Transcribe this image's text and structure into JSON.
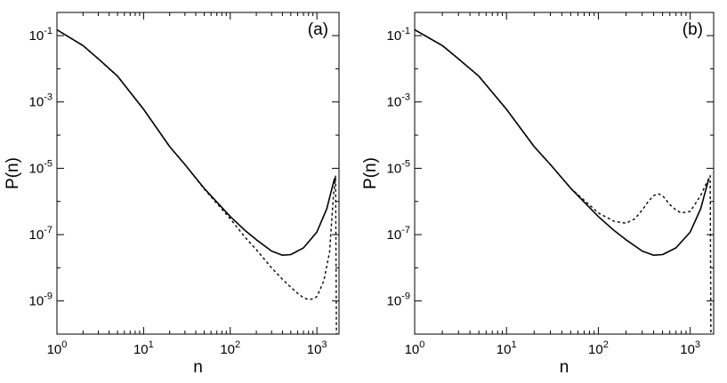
{
  "chart_data": [
    {
      "type": "line",
      "panel_label": "(a)",
      "xlabel": "n",
      "ylabel": "P(n)",
      "xscale": "log",
      "yscale": "log",
      "xlim": [
        1,
        1800
      ],
      "ylim": [
        1e-10,
        0.5
      ],
      "x_ticks": [
        {
          "base": "10",
          "exp": "0"
        },
        {
          "base": "10",
          "exp": "1"
        },
        {
          "base": "10",
          "exp": "2"
        },
        {
          "base": "10",
          "exp": "3"
        }
      ],
      "y_ticks": [
        {
          "base": "10",
          "exp": "-9"
        },
        {
          "base": "10",
          "exp": "-7"
        },
        {
          "base": "10",
          "exp": "-5"
        },
        {
          "base": "10",
          "exp": "-3"
        },
        {
          "base": "10",
          "exp": "-1"
        }
      ],
      "grid": false,
      "series": [
        {
          "style": "solid",
          "x": [
            1,
            2,
            3,
            5,
            10,
            20,
            30,
            50,
            100,
            150,
            200,
            300,
            400,
            500,
            700,
            1000,
            1300,
            1600
          ],
          "y": [
            0.15,
            0.05,
            0.02,
            0.006,
            0.0006,
            4.5e-05,
            1.3e-05,
            2.5e-06,
            3.5e-07,
            1.3e-07,
            7e-08,
            3.2e-08,
            2.4e-08,
            2.5e-08,
            4e-08,
            1.2e-07,
            6e-07,
            5e-06
          ]
        },
        {
          "style": "dashed",
          "x": [
            1,
            2,
            3,
            5,
            10,
            20,
            30,
            50,
            100,
            150,
            200,
            300,
            400,
            500,
            600,
            700,
            800,
            900,
            1000,
            1200,
            1400,
            1550,
            1640,
            1680
          ],
          "y": [
            0.15,
            0.05,
            0.02,
            0.006,
            0.0006,
            4.5e-05,
            1.3e-05,
            2.4e-06,
            3e-07,
            8e-08,
            3.5e-08,
            1e-08,
            4.5e-09,
            2.6e-09,
            1.7e-09,
            1.25e-09,
            1.1e-09,
            1.15e-09,
            1.35e-09,
            4e-09,
            3e-08,
            1.5e-06,
            6e-06,
            1e-10
          ]
        }
      ]
    },
    {
      "type": "line",
      "panel_label": "(b)",
      "xlabel": "n",
      "ylabel": "P(n)",
      "xscale": "log",
      "yscale": "log",
      "xlim": [
        1,
        1800
      ],
      "ylim": [
        1e-10,
        0.5
      ],
      "x_ticks": [
        {
          "base": "10",
          "exp": "0"
        },
        {
          "base": "10",
          "exp": "1"
        },
        {
          "base": "10",
          "exp": "2"
        },
        {
          "base": "10",
          "exp": "3"
        }
      ],
      "y_ticks": [
        {
          "base": "10",
          "exp": "-9"
        },
        {
          "base": "10",
          "exp": "-7"
        },
        {
          "base": "10",
          "exp": "-5"
        },
        {
          "base": "10",
          "exp": "-3"
        },
        {
          "base": "10",
          "exp": "-1"
        }
      ],
      "grid": false,
      "series": [
        {
          "style": "solid",
          "x": [
            1,
            2,
            3,
            5,
            10,
            20,
            30,
            50,
            100,
            150,
            200,
            300,
            400,
            500,
            700,
            1000,
            1300,
            1600
          ],
          "y": [
            0.15,
            0.05,
            0.02,
            0.006,
            0.0006,
            4.5e-05,
            1.3e-05,
            2.5e-06,
            3.5e-07,
            1.3e-07,
            7e-08,
            3.2e-08,
            2.4e-08,
            2.5e-08,
            4e-08,
            1.2e-07,
            6e-07,
            5e-06
          ]
        },
        {
          "style": "dashed",
          "x": [
            1,
            2,
            3,
            5,
            10,
            20,
            30,
            50,
            100,
            150,
            200,
            250,
            300,
            350,
            400,
            450,
            500,
            600,
            700,
            800,
            1000,
            1300,
            1500,
            1600,
            1650,
            1680
          ],
          "y": [
            0.15,
            0.05,
            0.02,
            0.006,
            0.0006,
            4.5e-05,
            1.3e-05,
            2.5e-06,
            4.5e-07,
            2.5e-07,
            2.2e-07,
            3e-07,
            5.5e-07,
            1e-06,
            1.5e-06,
            1.7e-06,
            1.5e-06,
            8e-07,
            5.5e-07,
            4.5e-07,
            5e-07,
            1.5e-06,
            3.5e-06,
            5e-06,
            6e-06,
            1e-10
          ]
        }
      ]
    }
  ]
}
